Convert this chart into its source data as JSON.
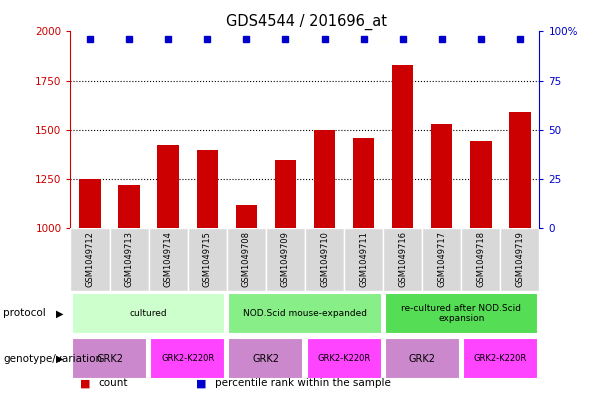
{
  "title": "GDS4544 / 201696_at",
  "samples": [
    "GSM1049712",
    "GSM1049713",
    "GSM1049714",
    "GSM1049715",
    "GSM1049708",
    "GSM1049709",
    "GSM1049710",
    "GSM1049711",
    "GSM1049716",
    "GSM1049717",
    "GSM1049718",
    "GSM1049719"
  ],
  "counts": [
    1250,
    1220,
    1420,
    1395,
    1115,
    1345,
    1500,
    1460,
    1830,
    1530,
    1440,
    1590
  ],
  "percentiles": [
    96,
    96,
    96,
    96,
    96,
    96,
    96,
    96,
    96,
    96,
    96,
    96
  ],
  "ylim_left": [
    1000,
    2000
  ],
  "ylim_right": [
    0,
    100
  ],
  "yticks_left": [
    1000,
    1250,
    1500,
    1750,
    2000
  ],
  "ytick_labels_left": [
    "1000",
    "1250",
    "1500",
    "1750",
    "2000"
  ],
  "yticks_right": [
    0,
    25,
    50,
    75,
    100
  ],
  "ytick_labels_right": [
    "0",
    "25",
    "50",
    "75",
    "100%"
  ],
  "left_color": "#cc0000",
  "right_color": "#0000cc",
  "bar_color": "#cc0000",
  "dot_color": "#0000cc",
  "dotted_lines": [
    1250,
    1500,
    1750
  ],
  "protocol_groups": [
    {
      "label": "cultured",
      "start": 0,
      "end": 4,
      "color": "#ccffcc"
    },
    {
      "label": "NOD.Scid mouse-expanded",
      "start": 4,
      "end": 8,
      "color": "#88ee88"
    },
    {
      "label": "re-cultured after NOD.Scid\nexpansion",
      "start": 8,
      "end": 12,
      "color": "#55dd55"
    }
  ],
  "genotype_groups": [
    {
      "label": "GRK2",
      "start": 0,
      "end": 2,
      "color": "#cc88cc"
    },
    {
      "label": "GRK2-K220R",
      "start": 2,
      "end": 4,
      "color": "#ff44ff"
    },
    {
      "label": "GRK2",
      "start": 4,
      "end": 6,
      "color": "#cc88cc"
    },
    {
      "label": "GRK2-K220R",
      "start": 6,
      "end": 8,
      "color": "#ff44ff"
    },
    {
      "label": "GRK2",
      "start": 8,
      "end": 10,
      "color": "#cc88cc"
    },
    {
      "label": "GRK2-K220R",
      "start": 10,
      "end": 12,
      "color": "#ff44ff"
    }
  ],
  "sample_bg_color": "#d8d8d8",
  "chart_bg_color": "#ffffff",
  "n_samples": 12
}
